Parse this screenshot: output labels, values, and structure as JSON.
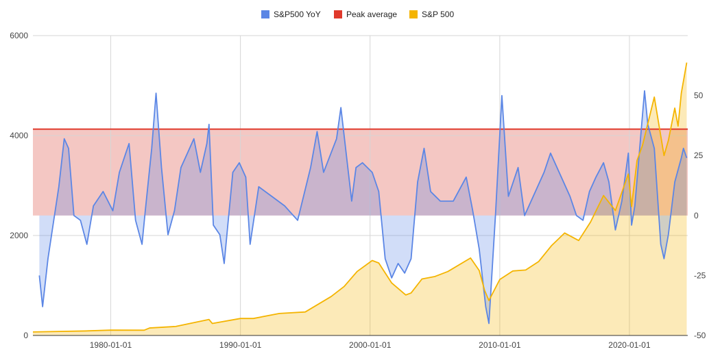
{
  "chart_data": {
    "type": "line",
    "title": "",
    "x_ticks": [
      "1980-01-01",
      "1990-01-01",
      "2000-01-01",
      "2010-01-01",
      "2020-01-01"
    ],
    "y_left": {
      "min": 0,
      "max": 6000,
      "ticks": [
        "0",
        "2000",
        "4000",
        "6000"
      ]
    },
    "y_right": {
      "min": -50,
      "max": 75,
      "ticks": [
        "-50",
        "-25",
        "0",
        "25",
        "50"
      ]
    },
    "grid": true,
    "legend_position": "top",
    "series": [
      {
        "name": "S&P500 YoY",
        "color": "#5b86e5",
        "axis": "right",
        "points": [
          [
            "1974-07-01",
            -25
          ],
          [
            "1974-10-01",
            -38
          ],
          [
            "1975-03-01",
            -18
          ],
          [
            "1975-07-01",
            -6
          ],
          [
            "1976-01-01",
            12
          ],
          [
            "1976-06-01",
            32
          ],
          [
            "1976-10-01",
            28
          ],
          [
            "1977-03-01",
            0
          ],
          [
            "1977-09-01",
            -2
          ],
          [
            "1978-03-01",
            -12
          ],
          [
            "1978-09-01",
            4
          ],
          [
            "1979-06-01",
            10
          ],
          [
            "1980-03-01",
            2
          ],
          [
            "1980-09-01",
            18
          ],
          [
            "1981-03-01",
            26
          ],
          [
            "1981-06-01",
            30
          ],
          [
            "1981-12-01",
            -2
          ],
          [
            "1982-06-01",
            -12
          ],
          [
            "1982-09-01",
            2
          ],
          [
            "1983-03-01",
            28
          ],
          [
            "1983-07-01",
            51
          ],
          [
            "1983-12-01",
            20
          ],
          [
            "1984-06-01",
            -8
          ],
          [
            "1984-12-01",
            2
          ],
          [
            "1985-06-01",
            20
          ],
          [
            "1985-12-01",
            26
          ],
          [
            "1986-06-01",
            32
          ],
          [
            "1986-12-01",
            18
          ],
          [
            "1987-06-01",
            30
          ],
          [
            "1987-08-01",
            38
          ],
          [
            "1987-12-01",
            -4
          ],
          [
            "1988-06-01",
            -8
          ],
          [
            "1988-10-01",
            -20
          ],
          [
            "1989-06-01",
            18
          ],
          [
            "1989-12-01",
            22
          ],
          [
            "1990-06-01",
            16
          ],
          [
            "1990-10-01",
            -12
          ],
          [
            "1991-06-01",
            12
          ],
          [
            "1992-06-01",
            8
          ],
          [
            "1993-06-01",
            4
          ],
          [
            "1994-06-01",
            -2
          ],
          [
            "1995-06-01",
            20
          ],
          [
            "1995-12-01",
            35
          ],
          [
            "1996-06-01",
            18
          ],
          [
            "1997-06-01",
            32
          ],
          [
            "1997-10-01",
            45
          ],
          [
            "1998-08-01",
            6
          ],
          [
            "1998-12-01",
            20
          ],
          [
            "1999-06-01",
            22
          ],
          [
            "2000-03-01",
            18
          ],
          [
            "2000-09-01",
            10
          ],
          [
            "2001-03-01",
            -18
          ],
          [
            "2001-09-01",
            -26
          ],
          [
            "2002-03-01",
            -20
          ],
          [
            "2002-09-01",
            -24
          ],
          [
            "2003-03-01",
            -18
          ],
          [
            "2003-09-01",
            14
          ],
          [
            "2004-03-01",
            28
          ],
          [
            "2004-09-01",
            10
          ],
          [
            "2005-06-01",
            6
          ],
          [
            "2006-06-01",
            6
          ],
          [
            "2007-06-01",
            16
          ],
          [
            "2007-12-01",
            2
          ],
          [
            "2008-06-01",
            -14
          ],
          [
            "2008-12-01",
            -38
          ],
          [
            "2009-03-01",
            -45
          ],
          [
            "2009-09-01",
            0
          ],
          [
            "2010-03-01",
            50
          ],
          [
            "2010-09-01",
            8
          ],
          [
            "2011-06-01",
            20
          ],
          [
            "2011-12-01",
            0
          ],
          [
            "2012-06-01",
            6
          ],
          [
            "2013-06-01",
            18
          ],
          [
            "2013-12-01",
            26
          ],
          [
            "2014-06-01",
            20
          ],
          [
            "2015-06-01",
            8
          ],
          [
            "2015-12-01",
            0
          ],
          [
            "2016-06-01",
            -2
          ],
          [
            "2016-12-01",
            10
          ],
          [
            "2017-06-01",
            16
          ],
          [
            "2018-01-01",
            22
          ],
          [
            "2018-06-01",
            14
          ],
          [
            "2018-12-01",
            -6
          ],
          [
            "2019-06-01",
            6
          ],
          [
            "2019-12-01",
            26
          ],
          [
            "2020-03-01",
            -4
          ],
          [
            "2020-06-01",
            4
          ],
          [
            "2021-03-01",
            52
          ],
          [
            "2021-06-01",
            38
          ],
          [
            "2021-12-01",
            28
          ],
          [
            "2022-06-01",
            -12
          ],
          [
            "2022-09-01",
            -18
          ],
          [
            "2023-01-01",
            -8
          ],
          [
            "2023-07-01",
            14
          ],
          [
            "2024-01-01",
            24
          ],
          [
            "2024-03-01",
            28
          ],
          [
            "2024-06-01",
            24
          ]
        ]
      },
      {
        "name": "Peak average",
        "color": "#e0392b",
        "axis": "right",
        "value": 36
      },
      {
        "name": "S&P 500",
        "color": "#f4b400",
        "axis": "left",
        "points": [
          [
            "1974-01-01",
            70
          ],
          [
            "1975-01-01",
            75
          ],
          [
            "1978-01-01",
            90
          ],
          [
            "1980-01-01",
            107
          ],
          [
            "1982-08-01",
            105
          ],
          [
            "1983-01-01",
            150
          ],
          [
            "1985-01-01",
            180
          ],
          [
            "1987-08-01",
            320
          ],
          [
            "1987-11-01",
            240
          ],
          [
            "1990-01-01",
            340
          ],
          [
            "1991-01-01",
            340
          ],
          [
            "1993-01-01",
            440
          ],
          [
            "1995-01-01",
            470
          ],
          [
            "1997-01-01",
            780
          ],
          [
            "1998-01-01",
            980
          ],
          [
            "1999-01-01",
            1280
          ],
          [
            "2000-03-01",
            1500
          ],
          [
            "2000-09-01",
            1450
          ],
          [
            "2001-09-01",
            1050
          ],
          [
            "2002-10-01",
            810
          ],
          [
            "2003-03-01",
            850
          ],
          [
            "2004-01-01",
            1130
          ],
          [
            "2005-01-01",
            1180
          ],
          [
            "2006-01-01",
            1280
          ],
          [
            "2007-10-01",
            1550
          ],
          [
            "2008-06-01",
            1300
          ],
          [
            "2008-11-01",
            900
          ],
          [
            "2009-03-01",
            700
          ],
          [
            "2010-01-01",
            1120
          ],
          [
            "2011-01-01",
            1290
          ],
          [
            "2012-01-01",
            1310
          ],
          [
            "2013-01-01",
            1480
          ],
          [
            "2014-01-01",
            1800
          ],
          [
            "2015-01-01",
            2050
          ],
          [
            "2016-02-01",
            1900
          ],
          [
            "2017-01-01",
            2270
          ],
          [
            "2018-01-01",
            2800
          ],
          [
            "2018-12-01",
            2500
          ],
          [
            "2019-12-01",
            3230
          ],
          [
            "2020-03-01",
            2580
          ],
          [
            "2020-08-01",
            3500
          ],
          [
            "2021-01-01",
            3800
          ],
          [
            "2021-12-01",
            4770
          ],
          [
            "2022-09-01",
            3600
          ],
          [
            "2023-01-01",
            3900
          ],
          [
            "2023-07-01",
            4550
          ],
          [
            "2023-10-01",
            4190
          ],
          [
            "2024-01-01",
            4850
          ],
          [
            "2024-06-01",
            5460
          ]
        ]
      }
    ],
    "bands": [
      {
        "from": 0,
        "to": 36,
        "axis": "right",
        "color": "#f4c7c3"
      }
    ],
    "x_range": [
      "1974-01-01",
      "2024-06-30"
    ]
  }
}
